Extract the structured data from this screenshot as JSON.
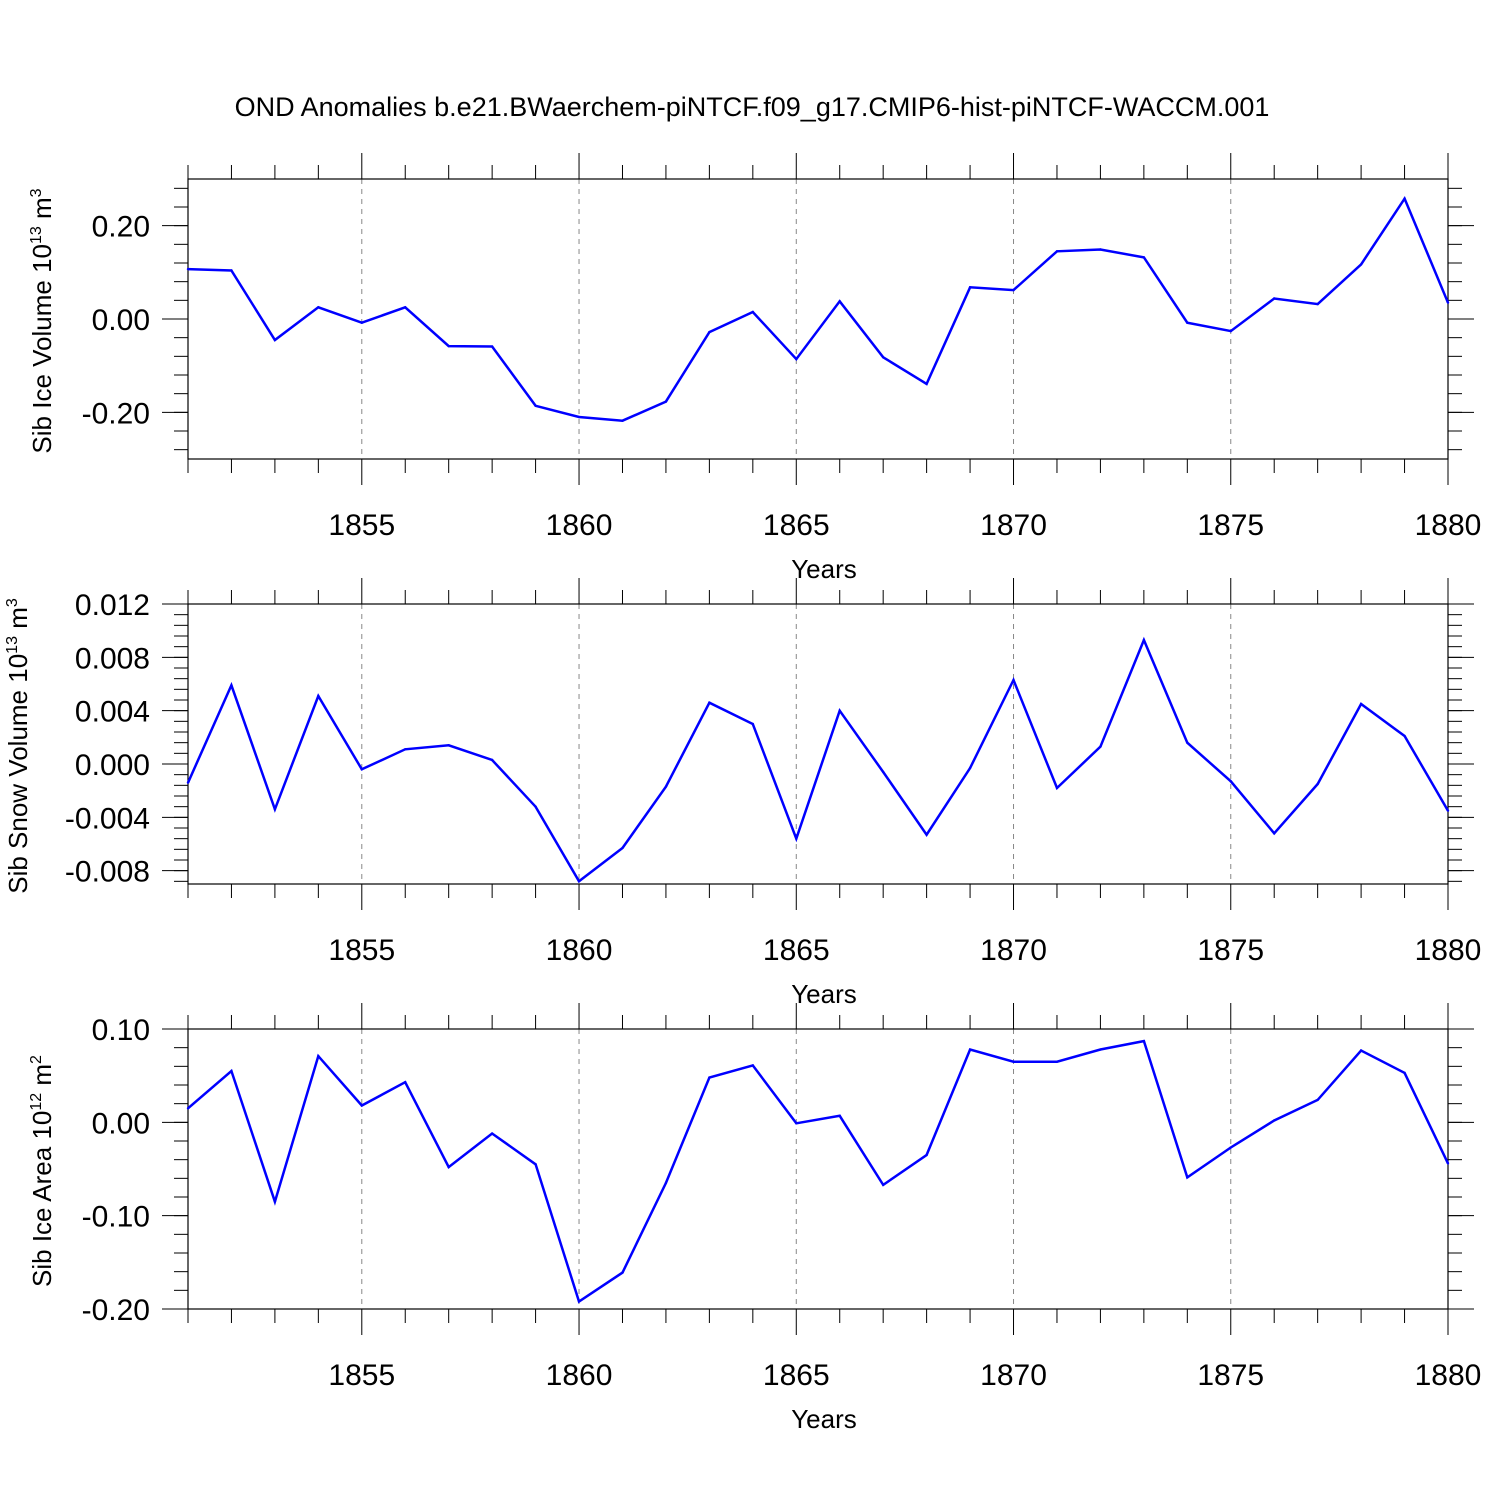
{
  "figure_title": "OND Anomalies b.e21.BWaerchem-piNTCF.f09_g17.CMIP6-hist-piNTCF-WACCM.001",
  "colors": {
    "line": "#0000ff",
    "axis": "#000000",
    "grid": "#888888",
    "background": "#ffffff"
  },
  "chart_data": [
    {
      "type": "line",
      "ylabel": {
        "text": "Sib Ice Volume 10",
        "sup": "13",
        "unit": " m",
        "unit_sup": "3"
      },
      "xlabel": "Years",
      "xlim": [
        1851,
        1880
      ],
      "ylim": [
        -0.3,
        0.3
      ],
      "x_ticks": [
        1855,
        1860,
        1865,
        1870,
        1875,
        1880
      ],
      "y_ticks": [
        0.2,
        0.0,
        -0.2
      ],
      "y_tick_labels": [
        "0.20",
        "0.00",
        "-0.20"
      ],
      "x": [
        1851,
        1852,
        1853,
        1854,
        1855,
        1856,
        1857,
        1858,
        1859,
        1860,
        1861,
        1862,
        1863,
        1864,
        1865,
        1866,
        1867,
        1868,
        1869,
        1870,
        1871,
        1872,
        1873,
        1874,
        1875,
        1876,
        1877,
        1878,
        1879,
        1880
      ],
      "values": [
        0.107,
        0.104,
        -0.045,
        0.025,
        -0.008,
        0.025,
        -0.058,
        -0.059,
        -0.186,
        -0.21,
        -0.218,
        -0.177,
        -0.028,
        0.015,
        -0.086,
        0.038,
        -0.082,
        -0.139,
        0.068,
        0.062,
        0.145,
        0.149,
        0.132,
        -0.008,
        -0.026,
        0.044,
        0.032,
        0.117,
        0.258,
        0.035
      ]
    },
    {
      "type": "line",
      "ylabel": {
        "text": "Sib Snow Volume 10",
        "sup": "13",
        "unit": " m",
        "unit_sup": "3"
      },
      "xlabel": "Years",
      "xlim": [
        1851,
        1880
      ],
      "ylim": [
        -0.009,
        0.012
      ],
      "x_ticks": [
        1855,
        1860,
        1865,
        1870,
        1875,
        1880
      ],
      "y_ticks": [
        0.012,
        0.008,
        0.004,
        0.0,
        -0.004,
        -0.008
      ],
      "y_tick_labels": [
        "0.012",
        "0.008",
        "0.004",
        "0.000",
        "-0.004",
        "-0.008"
      ],
      "x": [
        1851,
        1852,
        1853,
        1854,
        1855,
        1856,
        1857,
        1858,
        1859,
        1860,
        1861,
        1862,
        1863,
        1864,
        1865,
        1866,
        1867,
        1868,
        1869,
        1870,
        1871,
        1872,
        1873,
        1874,
        1875,
        1876,
        1877,
        1878,
        1879,
        1880
      ],
      "values": [
        -0.0014,
        0.0059,
        -0.0034,
        0.0051,
        -0.0004,
        0.0011,
        0.0014,
        0.0003,
        -0.0032,
        -0.0088,
        -0.0063,
        -0.0017,
        0.0046,
        0.003,
        -0.0056,
        0.004,
        -0.0006,
        -0.0053,
        -0.0003,
        0.0063,
        -0.0018,
        0.0013,
        0.0093,
        0.0016,
        -0.0013,
        -0.0052,
        -0.0015,
        0.0045,
        0.0021,
        -0.0035
      ]
    },
    {
      "type": "line",
      "ylabel": {
        "text": "Sib Ice Area 10",
        "sup": "12",
        "unit": " m",
        "unit_sup": "2"
      },
      "xlabel": "Years",
      "xlim": [
        1851,
        1880
      ],
      "ylim": [
        -0.2,
        0.1
      ],
      "x_ticks": [
        1855,
        1860,
        1865,
        1870,
        1875,
        1880
      ],
      "y_ticks": [
        0.1,
        0.0,
        -0.1,
        -0.2
      ],
      "y_tick_labels": [
        "0.10",
        "0.00",
        "-0.10",
        "-0.20"
      ],
      "x": [
        1851,
        1852,
        1853,
        1854,
        1855,
        1856,
        1857,
        1858,
        1859,
        1860,
        1861,
        1862,
        1863,
        1864,
        1865,
        1866,
        1867,
        1868,
        1869,
        1870,
        1871,
        1872,
        1873,
        1874,
        1875,
        1876,
        1877,
        1878,
        1879,
        1880
      ],
      "values": [
        0.015,
        0.055,
        -0.085,
        0.071,
        0.018,
        0.043,
        -0.048,
        -0.012,
        -0.045,
        -0.192,
        -0.161,
        -0.065,
        0.048,
        0.061,
        -0.001,
        0.007,
        -0.067,
        -0.035,
        0.078,
        0.065,
        0.065,
        0.078,
        0.087,
        -0.059,
        -0.027,
        0.002,
        0.024,
        0.077,
        0.053,
        -0.044
      ]
    }
  ]
}
